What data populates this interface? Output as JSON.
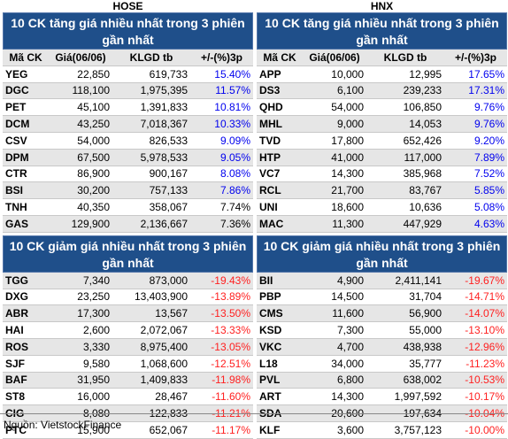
{
  "hose": {
    "title": "HOSE",
    "gainers": {
      "header": "10 CK tăng giá nhiều nhất trong 3 phiên gần nhất",
      "columns": [
        "Mã CK",
        "Giá(06/06)",
        "KLGD tb",
        "+/-(%)3p"
      ],
      "rows": [
        {
          "code": "YEG",
          "price": "22,850",
          "vol": "619,733",
          "change": "15.40%",
          "status": "up"
        },
        {
          "code": "DGC",
          "price": "118,100",
          "vol": "1,975,395",
          "change": "11.57%",
          "status": "up"
        },
        {
          "code": "PET",
          "price": "45,100",
          "vol": "1,391,833",
          "change": "10.81%",
          "status": "up"
        },
        {
          "code": "DCM",
          "price": "43,250",
          "vol": "7,018,367",
          "change": "10.33%",
          "status": "up"
        },
        {
          "code": "CSV",
          "price": "54,000",
          "vol": "826,533",
          "change": "9.09%",
          "status": "up"
        },
        {
          "code": "DPM",
          "price": "67,500",
          "vol": "5,978,533",
          "change": "9.05%",
          "status": "up"
        },
        {
          "code": "CTR",
          "price": "86,900",
          "vol": "900,167",
          "change": "8.08%",
          "status": "up"
        },
        {
          "code": "BSI",
          "price": "30,200",
          "vol": "757,133",
          "change": "7.86%",
          "status": "up"
        },
        {
          "code": "TNH",
          "price": "40,350",
          "vol": "358,067",
          "change": "7.74%",
          "status": "ref"
        },
        {
          "code": "GAS",
          "price": "129,900",
          "vol": "2,136,667",
          "change": "7.36%",
          "status": "ref"
        }
      ]
    },
    "losers": {
      "header": "10 CK giảm giá nhiều nhất trong 3 phiên gần nhất",
      "rows": [
        {
          "code": "TGG",
          "price": "7,340",
          "vol": "873,000",
          "change": "-19.43%",
          "status": "down"
        },
        {
          "code": "DXG",
          "price": "23,250",
          "vol": "13,403,900",
          "change": "-13.89%",
          "status": "down"
        },
        {
          "code": "ABR",
          "price": "17,300",
          "vol": "13,567",
          "change": "-13.50%",
          "status": "down"
        },
        {
          "code": "HAI",
          "price": "2,600",
          "vol": "2,072,067",
          "change": "-13.33%",
          "status": "down"
        },
        {
          "code": "ROS",
          "price": "3,330",
          "vol": "8,975,400",
          "change": "-13.05%",
          "status": "down"
        },
        {
          "code": "SJF",
          "price": "9,580",
          "vol": "1,068,600",
          "change": "-12.51%",
          "status": "down"
        },
        {
          "code": "BAF",
          "price": "31,950",
          "vol": "1,409,833",
          "change": "-11.98%",
          "status": "down"
        },
        {
          "code": "ST8",
          "price": "16,000",
          "vol": "28,467",
          "change": "-11.60%",
          "status": "down"
        },
        {
          "code": "CIG",
          "price": "8,080",
          "vol": "122,833",
          "change": "-11.21%",
          "status": "down"
        },
        {
          "code": "PTC",
          "price": "15,900",
          "vol": "652,067",
          "change": "-11.17%",
          "status": "down"
        }
      ]
    }
  },
  "hnx": {
    "title": "HNX",
    "gainers": {
      "header": "10 CK tăng giá nhiều nhất trong 3 phiên gần nhất",
      "columns": [
        "Mã CK",
        "Giá(06/06)",
        "KLGD tb",
        "+/-(%)3p"
      ],
      "rows": [
        {
          "code": "APP",
          "price": "10,000",
          "vol": "12,995",
          "change": "17.65%",
          "status": "up"
        },
        {
          "code": "DS3",
          "price": "6,100",
          "vol": "239,233",
          "change": "17.31%",
          "status": "up"
        },
        {
          "code": "QHD",
          "price": "54,000",
          "vol": "106,850",
          "change": "9.76%",
          "status": "up"
        },
        {
          "code": "MHL",
          "price": "9,000",
          "vol": "14,053",
          "change": "9.76%",
          "status": "up"
        },
        {
          "code": "TVD",
          "price": "17,800",
          "vol": "652,426",
          "change": "9.20%",
          "status": "up"
        },
        {
          "code": "HTP",
          "price": "41,000",
          "vol": "117,000",
          "change": "7.89%",
          "status": "up"
        },
        {
          "code": "VC7",
          "price": "14,300",
          "vol": "385,968",
          "change": "7.52%",
          "status": "up"
        },
        {
          "code": "RCL",
          "price": "21,700",
          "vol": "83,767",
          "change": "5.85%",
          "status": "up"
        },
        {
          "code": "UNI",
          "price": "18,600",
          "vol": "10,636",
          "change": "5.08%",
          "status": "up"
        },
        {
          "code": "MAC",
          "price": "11,300",
          "vol": "447,929",
          "change": "4.63%",
          "status": "up"
        }
      ]
    },
    "losers": {
      "header": "10 CK giảm giá nhiều nhất trong 3 phiên gần nhất",
      "rows": [
        {
          "code": "BII",
          "price": "4,900",
          "vol": "2,411,141",
          "change": "-19.67%",
          "status": "down"
        },
        {
          "code": "PBP",
          "price": "14,500",
          "vol": "31,704",
          "change": "-14.71%",
          "status": "down"
        },
        {
          "code": "CMS",
          "price": "11,600",
          "vol": "56,900",
          "change": "-14.07%",
          "status": "down"
        },
        {
          "code": "KSD",
          "price": "7,300",
          "vol": "55,000",
          "change": "-13.10%",
          "status": "down"
        },
        {
          "code": "VKC",
          "price": "4,700",
          "vol": "438,938",
          "change": "-12.96%",
          "status": "down"
        },
        {
          "code": "L18",
          "price": "34,000",
          "vol": "35,777",
          "change": "-11.23%",
          "status": "down"
        },
        {
          "code": "PVL",
          "price": "6,800",
          "vol": "638,002",
          "change": "-10.53%",
          "status": "down"
        },
        {
          "code": "ART",
          "price": "14,300",
          "vol": "1,997,592",
          "change": "-10.17%",
          "status": "down"
        },
        {
          "code": "SDA",
          "price": "20,600",
          "vol": "197,634",
          "change": "-10.04%",
          "status": "down"
        },
        {
          "code": "KLF",
          "price": "3,600",
          "vol": "3,757,123",
          "change": "-10.00%",
          "status": "down"
        }
      ]
    }
  },
  "colors": {
    "header_bg": "#1f4f8a",
    "up": "#0000ee",
    "down": "#ff2020",
    "stripe": "#e6e6e6"
  },
  "source": "Nguồn: VietstockFinance"
}
